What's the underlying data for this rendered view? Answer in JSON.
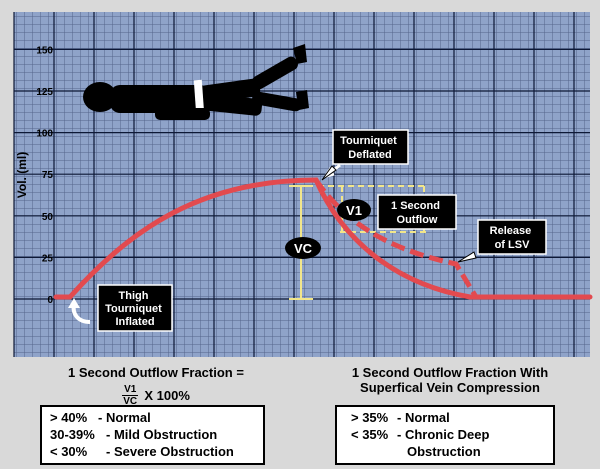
{
  "chart": {
    "y_axis_label": "Vol. (ml)",
    "y_ticks": [
      "0",
      "25",
      "50",
      "75",
      "100",
      "125",
      "150"
    ]
  },
  "annotations": {
    "thigh_tourniquet": [
      "Thigh",
      "Tourniquet",
      "Inflated"
    ],
    "tourniquet_deflated": [
      "Tourniquet",
      "Deflated"
    ],
    "one_second_outflow": [
      "1 Second",
      "Outflow"
    ],
    "release_lsv": [
      "Release",
      "of LSV"
    ],
    "v1": "V1",
    "vc": "VC"
  },
  "left_panel": {
    "title": "1 Second Outflow Fraction =",
    "frac_num": "V1",
    "frac_den": "VC",
    "frac_suffix": "X 100%",
    "criteria": [
      {
        "range": "> 40%",
        "label": "- Normal"
      },
      {
        "range": "30-39%",
        "label": "- Mild Obstruction"
      },
      {
        "range": "< 30%",
        "label": "- Severe Obstruction"
      }
    ]
  },
  "right_panel": {
    "title_line1": "1 Second Outflow Fraction With",
    "title_line2": "Superfical Vein Compression",
    "criteria": [
      {
        "range": "> 35%",
        "label": "- Normal"
      },
      {
        "range": "< 35%",
        "label": "- Chronic Deep"
      },
      {
        "range": "",
        "label": "Obstruction"
      }
    ]
  },
  "colors": {
    "grid_bg": "#8fa3c9",
    "grid_minor": "#1c2a4d",
    "curve": "#e24a4f",
    "bracket": "#f2e68a"
  }
}
